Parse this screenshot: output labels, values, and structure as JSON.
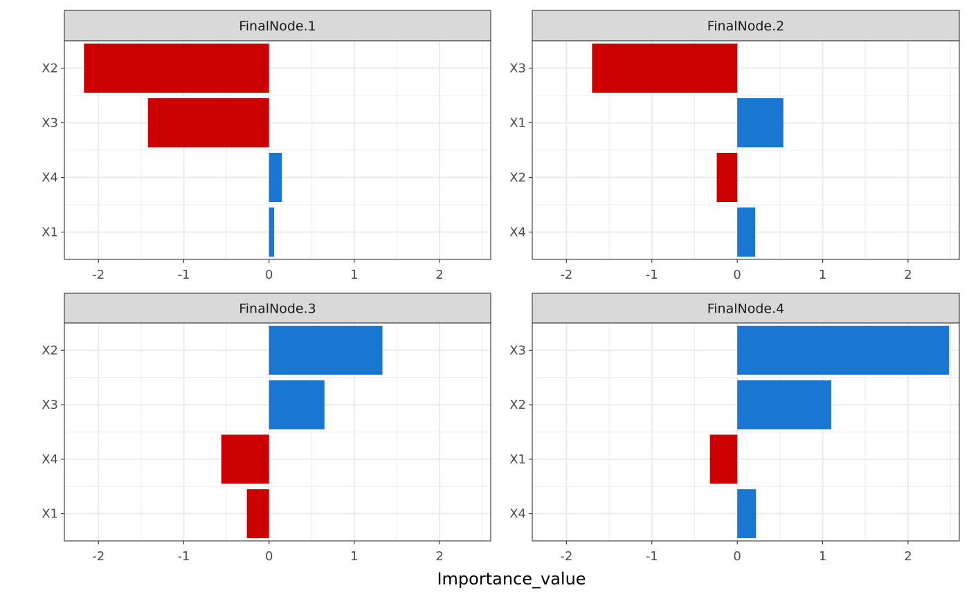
{
  "chart_data": {
    "type": "bar",
    "orientation": "horizontal",
    "xlabel": "Importance_value",
    "xlim": [
      -2.4,
      2.6
    ],
    "x_ticks": [
      -2,
      -1,
      0,
      1,
      2
    ],
    "grid": true,
    "colors": {
      "positive": "#1976D2",
      "negative": "#CC0000"
    },
    "facets": [
      {
        "title": "FinalNode.1",
        "categories": [
          "X2",
          "X3",
          "X4",
          "X1"
        ],
        "values": [
          -2.17,
          -1.42,
          0.15,
          0.06
        ]
      },
      {
        "title": "FinalNode.2",
        "categories": [
          "X3",
          "X1",
          "X2",
          "X4"
        ],
        "values": [
          -1.7,
          0.54,
          -0.24,
          0.21
        ]
      },
      {
        "title": "FinalNode.3",
        "categories": [
          "X2",
          "X3",
          "X4",
          "X1"
        ],
        "values": [
          1.33,
          0.65,
          -0.56,
          -0.26
        ]
      },
      {
        "title": "FinalNode.4",
        "categories": [
          "X3",
          "X2",
          "X1",
          "X4"
        ],
        "values": [
          2.48,
          1.1,
          -0.32,
          0.22
        ]
      }
    ]
  }
}
